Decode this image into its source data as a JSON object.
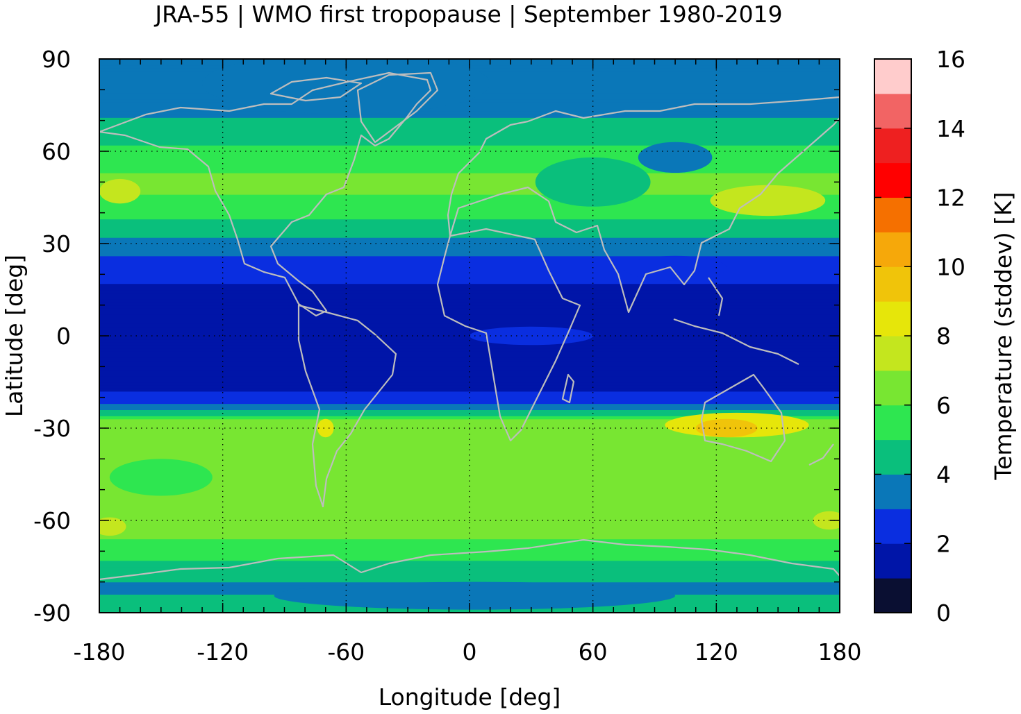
{
  "chart_data": {
    "type": "heatmap",
    "title": "JRA-55 | WMO first tropopause | September 1980-2019",
    "xlabel": "Longitude [deg]",
    "ylabel": "Latitude [deg]",
    "colorbar_label": "Temperature (stddev) [K]",
    "xlim": [
      -180,
      180
    ],
    "ylim": [
      -90,
      90
    ],
    "x_ticks": [
      -180,
      -120,
      -60,
      0,
      60,
      120,
      180
    ],
    "y_ticks": [
      90,
      60,
      30,
      0,
      -30,
      -60,
      -90
    ],
    "colorbar_ticks": [
      0,
      2,
      4,
      6,
      8,
      10,
      12,
      14,
      16
    ],
    "colorbar_range": [
      0,
      16
    ],
    "grid": true,
    "levels": [
      {
        "from": 0,
        "to": 1,
        "color": "#0a0f32"
      },
      {
        "from": 1,
        "to": 2,
        "color": "#0015a8"
      },
      {
        "from": 2,
        "to": 3,
        "color": "#0a2ee0"
      },
      {
        "from": 3,
        "to": 4,
        "color": "#0a77b8"
      },
      {
        "from": 4,
        "to": 5,
        "color": "#0abf7c"
      },
      {
        "from": 5,
        "to": 6,
        "color": "#2ee650"
      },
      {
        "from": 6,
        "to": 7,
        "color": "#78e632"
      },
      {
        "from": 7,
        "to": 8,
        "color": "#c4e61e"
      },
      {
        "from": 8,
        "to": 9,
        "color": "#e6e60a"
      },
      {
        "from": 9,
        "to": 10,
        "color": "#f0c40a"
      },
      {
        "from": 10,
        "to": 11,
        "color": "#f6a80a"
      },
      {
        "from": 11,
        "to": 12,
        "color": "#f57000"
      },
      {
        "from": 12,
        "to": 13,
        "color": "#ff0000"
      },
      {
        "from": 13,
        "to": 14,
        "color": "#ee2020"
      },
      {
        "from": 14,
        "to": 15,
        "color": "#f26464"
      },
      {
        "from": 15,
        "to": 16,
        "color": "#ffcccc"
      }
    ],
    "zonal_profile": [
      {
        "lat": -90,
        "value": 4.6
      },
      {
        "lat": -82,
        "value": 3.8
      },
      {
        "lat": -76,
        "value": 4.5
      },
      {
        "lat": -70,
        "value": 5.6
      },
      {
        "lat": -62,
        "value": 6.4
      },
      {
        "lat": -50,
        "value": 6.4
      },
      {
        "lat": -40,
        "value": 6.3
      },
      {
        "lat": -33,
        "value": 6.7
      },
      {
        "lat": -28,
        "value": 6.4
      },
      {
        "lat": -25,
        "value": 4.6
      },
      {
        "lat": -21,
        "value": 2.4
      },
      {
        "lat": -15,
        "value": 1.6
      },
      {
        "lat": 0,
        "value": 1.5
      },
      {
        "lat": 12,
        "value": 1.6
      },
      {
        "lat": 22,
        "value": 2.4
      },
      {
        "lat": 30,
        "value": 3.6
      },
      {
        "lat": 36,
        "value": 4.6
      },
      {
        "lat": 42,
        "value": 5.6
      },
      {
        "lat": 50,
        "value": 6.4
      },
      {
        "lat": 58,
        "value": 5.4
      },
      {
        "lat": 66,
        "value": 4.6
      },
      {
        "lat": 72,
        "value": 3.8
      },
      {
        "lat": 90,
        "value": 3.6
      }
    ],
    "features": [
      {
        "type": "lowband",
        "lat0": -89,
        "lat1": -80,
        "lon0": -95,
        "lon1": 100,
        "level": 3
      },
      {
        "type": "blob",
        "lon": -170,
        "lat": 47,
        "rlon": 10,
        "rlat": 4,
        "level": 7
      },
      {
        "type": "blob",
        "lon": 145,
        "lat": 44,
        "rlon": 28,
        "rlat": 5,
        "level": 7
      },
      {
        "type": "blob",
        "lon": 60,
        "lat": 50,
        "rlon": 28,
        "rlat": 8,
        "level": 4
      },
      {
        "type": "blob",
        "lon": 100,
        "lat": 58,
        "rlon": 18,
        "rlat": 5,
        "level": 3
      },
      {
        "type": "blob",
        "lon": -60,
        "lat": 82,
        "rlon": 70,
        "rlat": 10,
        "level": 3
      },
      {
        "type": "blob",
        "lon": 130,
        "lat": -29,
        "rlon": 35,
        "rlat": 4,
        "level": 8
      },
      {
        "type": "blob",
        "lon": 125,
        "lat": -30,
        "rlon": 15,
        "rlat": 3,
        "level": 9
      },
      {
        "type": "blob",
        "lon": -70,
        "lat": -30,
        "rlon": 4,
        "rlat": 3,
        "level": 8
      },
      {
        "type": "blob",
        "lon": -175,
        "lat": -62,
        "rlon": 8,
        "rlat": 3,
        "level": 7
      },
      {
        "type": "blob",
        "lon": 175,
        "lat": -60,
        "rlon": 8,
        "rlat": 3,
        "level": 7
      },
      {
        "type": "blob",
        "lon": -150,
        "lat": -46,
        "rlon": 25,
        "rlat": 6,
        "level": 5
      },
      {
        "type": "blob",
        "lon": 100,
        "lat": 22,
        "rlon": 25,
        "rlat": 4,
        "level": 2
      },
      {
        "type": "blob",
        "lon": 30,
        "lat": 0,
        "rlon": 30,
        "rlat": 3,
        "level": 2
      }
    ]
  }
}
